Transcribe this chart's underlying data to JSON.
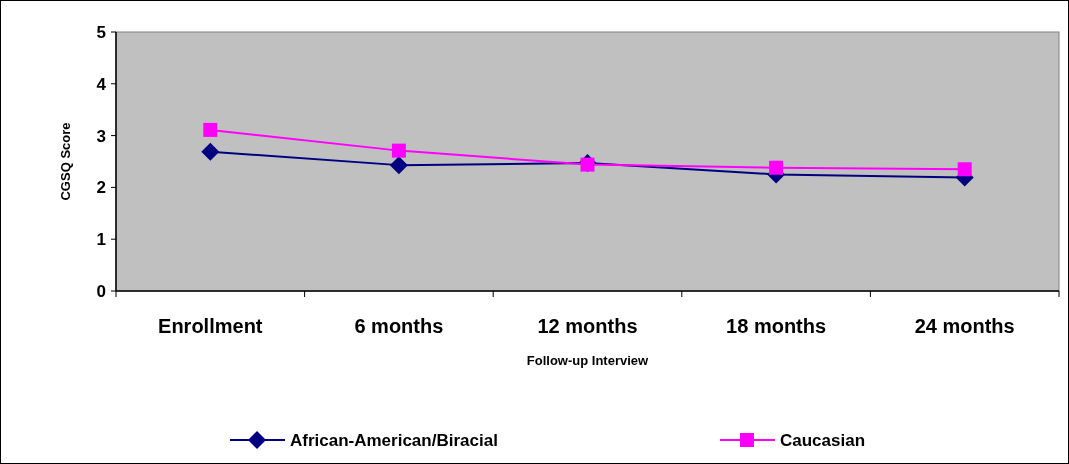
{
  "chart_data": {
    "type": "line",
    "xlabel": "Follow-up Interview",
    "ylabel": "CGSQ Score",
    "categories": [
      "Enrollment",
      "6 months",
      "12 months",
      "18 months",
      "24 months"
    ],
    "series": [
      {
        "name": "African-American/Biracial",
        "color": "#000080",
        "marker": "diamond",
        "values": [
          2.69,
          2.43,
          2.47,
          2.25,
          2.19
        ]
      },
      {
        "name": "Caucasian",
        "color": "#ff00ff",
        "marker": "square",
        "values": [
          3.11,
          2.71,
          2.44,
          2.38,
          2.35
        ]
      }
    ],
    "ylim": [
      0,
      5
    ],
    "yticks": [
      0,
      1,
      2,
      3,
      4,
      5
    ],
    "grid": false,
    "legend": "bottom"
  }
}
